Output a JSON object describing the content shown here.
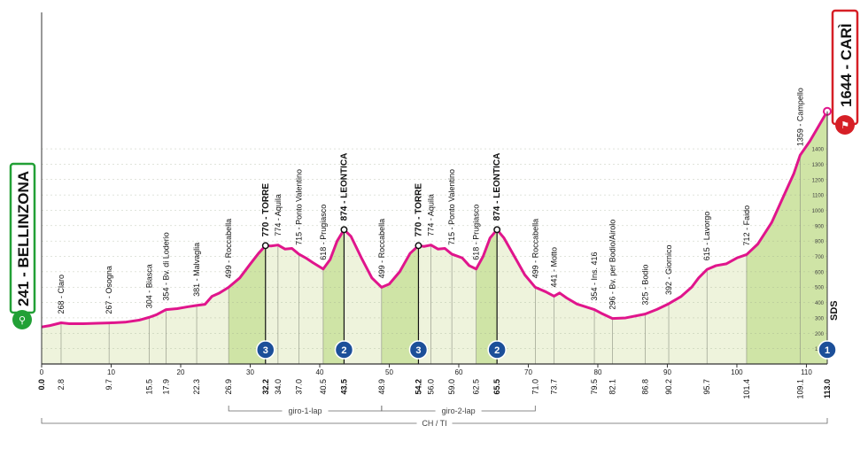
{
  "colors": {
    "profile_line": "#e0158c",
    "fill_light": "#eef3dc",
    "fill_climb": "#cfe4a6",
    "start_green": "#22a036",
    "finish_red": "#d61f26",
    "cat_badge": "#1c4f99",
    "axis": "#333333"
  },
  "start": {
    "label": "241 - BELLINZONA"
  },
  "finish": {
    "label": "1644 - CARÌ"
  },
  "sponsor_mark": "SDS",
  "chart_data": {
    "type": "area",
    "xlabel": "",
    "ylabel": "",
    "xlim": [
      0,
      113
    ],
    "ylim": [
      0,
      1700
    ],
    "x_ticks": [
      0,
      10,
      20,
      30,
      40,
      50,
      60,
      70,
      80,
      90,
      100,
      110
    ],
    "y_ticks": [
      100,
      200,
      300,
      400,
      500,
      600,
      700,
      800,
      900,
      1000,
      1100,
      1200,
      1300,
      1400
    ],
    "profile": [
      [
        0,
        241
      ],
      [
        1.2,
        250
      ],
      [
        2.8,
        268
      ],
      [
        4,
        262
      ],
      [
        6,
        262
      ],
      [
        8,
        265
      ],
      [
        9.7,
        267
      ],
      [
        12,
        272
      ],
      [
        14,
        285
      ],
      [
        15.5,
        304
      ],
      [
        16.5,
        320
      ],
      [
        17.9,
        354
      ],
      [
        19.5,
        360
      ],
      [
        21,
        372
      ],
      [
        22.3,
        381
      ],
      [
        23.5,
        388
      ],
      [
        24.5,
        440
      ],
      [
        25.5,
        460
      ],
      [
        26.9,
        499
      ],
      [
        28.5,
        560
      ],
      [
        30,
        650
      ],
      [
        31.2,
        720
      ],
      [
        32.2,
        770
      ],
      [
        33,
        768
      ],
      [
        34,
        774
      ],
      [
        35,
        748
      ],
      [
        36,
        752
      ],
      [
        37,
        715
      ],
      [
        38,
        690
      ],
      [
        39,
        660
      ],
      [
        40.5,
        618
      ],
      [
        41.5,
        680
      ],
      [
        42.5,
        800
      ],
      [
        43.5,
        874
      ],
      [
        44.5,
        830
      ],
      [
        46,
        690
      ],
      [
        47.5,
        560
      ],
      [
        48.9,
        499
      ],
      [
        50,
        520
      ],
      [
        51.5,
        600
      ],
      [
        53,
        720
      ],
      [
        54.2,
        770
      ],
      [
        55,
        765
      ],
      [
        56,
        774
      ],
      [
        57,
        748
      ],
      [
        58,
        752
      ],
      [
        59,
        715
      ],
      [
        60.5,
        690
      ],
      [
        61.5,
        640
      ],
      [
        62.5,
        618
      ],
      [
        63.5,
        700
      ],
      [
        64.5,
        820
      ],
      [
        65.5,
        874
      ],
      [
        66.5,
        820
      ],
      [
        68,
        700
      ],
      [
        69.5,
        580
      ],
      [
        71,
        499
      ],
      [
        72.5,
        470
      ],
      [
        73.7,
        441
      ],
      [
        74.5,
        462
      ],
      [
        75.5,
        430
      ],
      [
        77,
        390
      ],
      [
        79.5,
        354
      ],
      [
        80.5,
        330
      ],
      [
        82.1,
        296
      ],
      [
        84,
        300
      ],
      [
        86.8,
        325
      ],
      [
        88.5,
        355
      ],
      [
        90.2,
        392
      ],
      [
        92,
        440
      ],
      [
        93.5,
        500
      ],
      [
        94.5,
        560
      ],
      [
        95.7,
        615
      ],
      [
        97,
        640
      ],
      [
        98.5,
        652
      ],
      [
        100,
        690
      ],
      [
        101.4,
        712
      ],
      [
        103,
        780
      ],
      [
        105,
        920
      ],
      [
        107,
        1120
      ],
      [
        108.2,
        1240
      ],
      [
        109.1,
        1359
      ],
      [
        110.5,
        1450
      ],
      [
        113,
        1644
      ]
    ],
    "climbs": [
      {
        "from": 26.9,
        "to": 32.2,
        "category": "3"
      },
      {
        "from": 40.5,
        "to": 43.5,
        "category": "2"
      },
      {
        "from": 48.9,
        "to": 54.2,
        "category": "3"
      },
      {
        "from": 62.5,
        "to": 65.5,
        "category": "2"
      },
      {
        "from": 101.4,
        "to": 113.0,
        "category": "1"
      }
    ],
    "waypoints": [
      {
        "km": "0.0",
        "x": 0,
        "alt": 241,
        "label": "",
        "bold": true
      },
      {
        "km": "2.8",
        "x": 2.8,
        "alt": 268,
        "label": "268 - Claro"
      },
      {
        "km": "9.7",
        "x": 9.7,
        "alt": 267,
        "label": "267 - Osogna"
      },
      {
        "km": "15.5",
        "x": 15.5,
        "alt": 304,
        "label": "304 - Biasca"
      },
      {
        "km": "17.9",
        "x": 17.9,
        "alt": 354,
        "label": "354 - Bv. di Loderio"
      },
      {
        "km": "22.3",
        "x": 22.3,
        "alt": 381,
        "label": "381 - Malvaglia"
      },
      {
        "km": "26.9",
        "x": 26.9,
        "alt": 499,
        "label": "499 - Roccabella"
      },
      {
        "km": "32.2",
        "x": 32.2,
        "alt": 770,
        "label": "770 - TORRE",
        "bold": true,
        "gpm": true
      },
      {
        "km": "34.0",
        "x": 34,
        "alt": 774,
        "label": "774 - Aquila"
      },
      {
        "km": "37.0",
        "x": 37,
        "alt": 715,
        "label": "715 - Ponto Valentino"
      },
      {
        "km": "40.5",
        "x": 40.5,
        "alt": 618,
        "label": "618 - Prugiasco"
      },
      {
        "km": "43.5",
        "x": 43.5,
        "alt": 874,
        "label": "874 - LEONTICA",
        "bold": true,
        "gpm": true
      },
      {
        "km": "48.9",
        "x": 48.9,
        "alt": 499,
        "label": "499 - Roccabella"
      },
      {
        "km": "54.2",
        "x": 54.2,
        "alt": 770,
        "label": "770 - TORRE",
        "bold": true,
        "gpm": true
      },
      {
        "km": "56.0",
        "x": 56,
        "alt": 774,
        "label": "774 - Aquila"
      },
      {
        "km": "59.0",
        "x": 59,
        "alt": 715,
        "label": "715 - Ponto Valentino"
      },
      {
        "km": "62.5",
        "x": 62.5,
        "alt": 618,
        "label": "618 - Prugiasco"
      },
      {
        "km": "65.5",
        "x": 65.5,
        "alt": 874,
        "label": "874 - LEONTICA",
        "bold": true,
        "gpm": true
      },
      {
        "km": "71.0",
        "x": 71,
        "alt": 499,
        "label": "499 - Roccabella"
      },
      {
        "km": "73.7",
        "x": 73.7,
        "alt": 441,
        "label": "441 - Motto"
      },
      {
        "km": "79.5",
        "x": 79.5,
        "alt": 354,
        "label": "354 - Ins. 416"
      },
      {
        "km": "82.1",
        "x": 82.1,
        "alt": 296,
        "label": "296 - Bv. per Bodio/Airolo"
      },
      {
        "km": "86.8",
        "x": 86.8,
        "alt": 325,
        "label": "325 - Bodio"
      },
      {
        "km": "90.2",
        "x": 90.2,
        "alt": 392,
        "label": "392 - Giornico"
      },
      {
        "km": "95.7",
        "x": 95.7,
        "alt": 615,
        "label": "615 - Lavorgo"
      },
      {
        "km": "101.4",
        "x": 101.4,
        "alt": 712,
        "label": "712 - Faido"
      },
      {
        "km": "109.1",
        "x": 109.1,
        "alt": 1359,
        "label": "1359 - Campello"
      },
      {
        "km": "113.0",
        "x": 113,
        "alt": 1644,
        "label": "",
        "bold": true
      }
    ],
    "laps": [
      {
        "label": "giro-1-lap",
        "from": 26.9,
        "to": 48.9
      },
      {
        "label": "giro-2-lap",
        "from": 48.9,
        "to": 71.0
      }
    ],
    "country": {
      "label": "CH / TI",
      "from": 0,
      "to": 113
    }
  }
}
